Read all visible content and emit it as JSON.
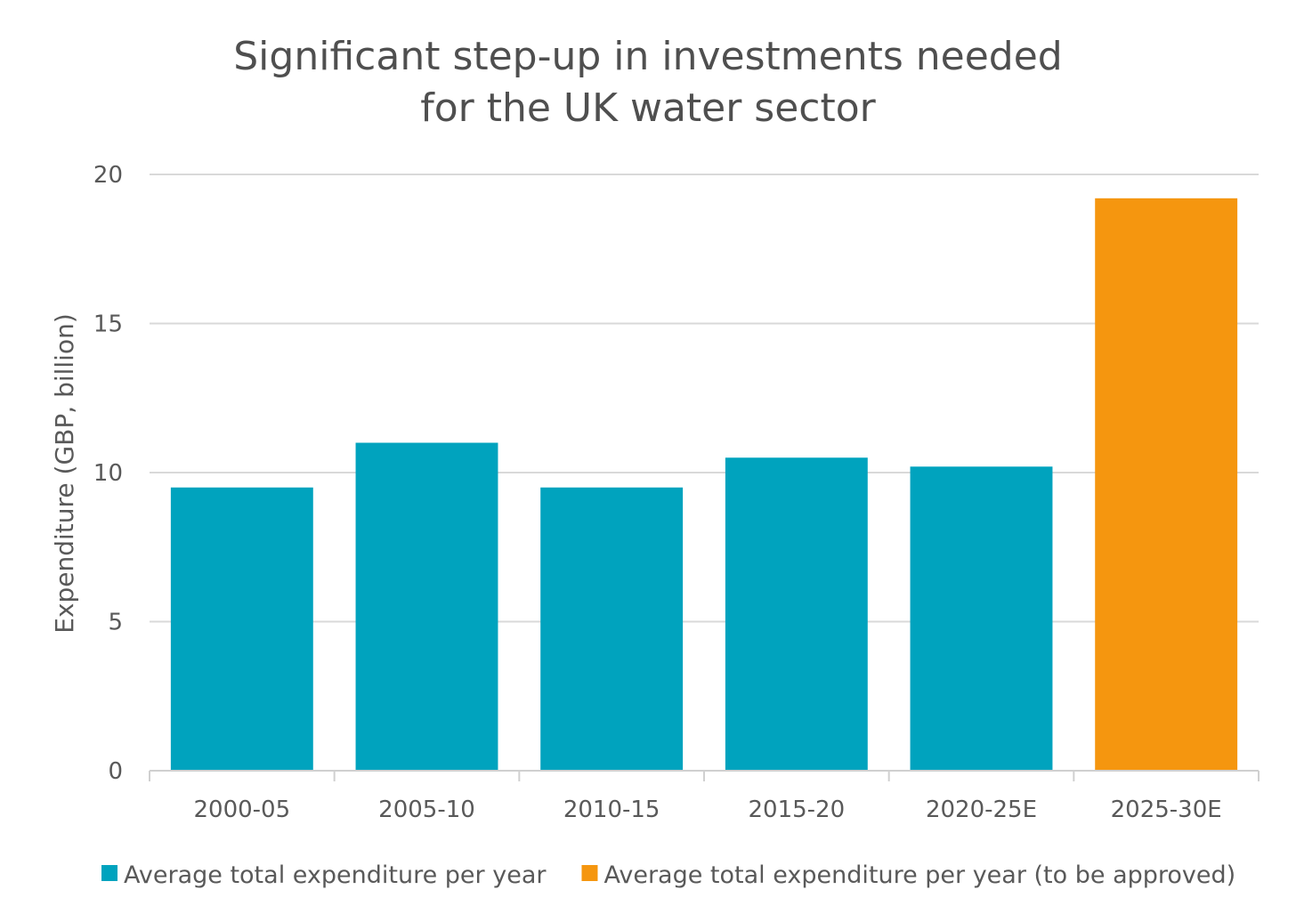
{
  "chart_data": {
    "type": "bar",
    "title": "Significant step-up in investments needed for the UK water sector",
    "title_lines": [
      "Significant step-up in investments needed",
      "for the UK water sector"
    ],
    "ylabel": "Expenditure (GBP, billion)",
    "xlabel": "",
    "ylim": [
      0,
      20
    ],
    "yticks": [
      0,
      5,
      10,
      15,
      20
    ],
    "grid": true,
    "legend_position": "bottom",
    "categories": [
      "2000-05",
      "2005-10",
      "2010-15",
      "2015-20",
      "2020-25E",
      "2025-30E"
    ],
    "values": [
      9.5,
      11.0,
      9.5,
      10.5,
      10.2,
      19.2
    ],
    "bar_series": [
      0,
      0,
      0,
      0,
      0,
      1
    ],
    "series": [
      {
        "name": "Average total expenditure per year",
        "color": "#00A3BE"
      },
      {
        "name": "Average total expenditure per year (to be approved)",
        "color": "#F5960F"
      }
    ]
  }
}
